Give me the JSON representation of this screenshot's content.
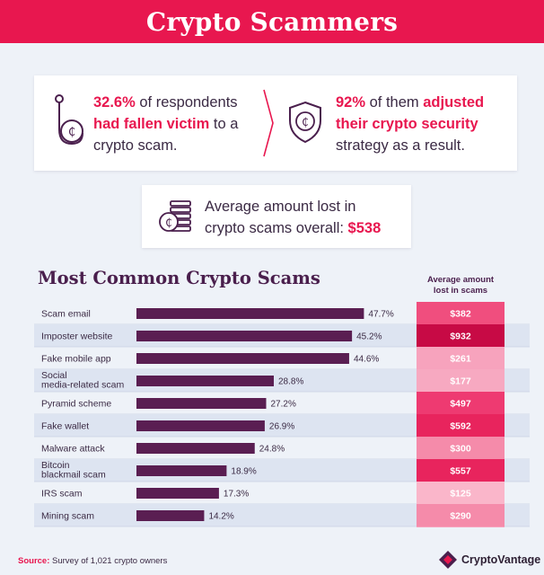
{
  "header": {
    "title": "Crypto Scammers"
  },
  "stats": {
    "left": {
      "pct": "32.6%",
      "pre": " of respondents",
      "bold": "had fallen victim",
      "post_bold": " to a",
      "line3": "crypto scam."
    },
    "right": {
      "pct": "92%",
      "pre": " of them ",
      "bold1": "adjusted",
      "bold2": "their crypto security",
      "line3": "strategy as a result."
    }
  },
  "average": {
    "line1": "Average amount lost in",
    "line2": "crypto scams overall: ",
    "value": "$538"
  },
  "chart_data": {
    "type": "bar",
    "title": "Most Common Crypto Scams",
    "column_header": [
      "Average amount",
      "lost in scams"
    ],
    "categories": [
      "Scam email",
      "Imposter website",
      "Fake mobile app",
      "Social media-related scam",
      "Pyramid scheme",
      "Fake wallet",
      "Malware attack",
      "Bitcoin blackmail scam",
      "IRS scam",
      "Mining scam"
    ],
    "category_lines": [
      [
        "Scam email"
      ],
      [
        "Imposter website"
      ],
      [
        "Fake mobile app"
      ],
      [
        "Social",
        "media-related scam"
      ],
      [
        "Pyramid scheme"
      ],
      [
        "Fake wallet"
      ],
      [
        "Malware attack"
      ],
      [
        "Bitcoin",
        "blackmail scam"
      ],
      [
        "IRS scam"
      ],
      [
        "Mining scam"
      ]
    ],
    "values": [
      47.7,
      45.2,
      44.6,
      28.8,
      27.2,
      26.9,
      24.8,
      18.9,
      17.3,
      14.2
    ],
    "value_labels": [
      "47.7%",
      "45.2%",
      "44.6%",
      "28.8%",
      "27.2%",
      "26.9%",
      "24.8%",
      "18.9%",
      "17.3%",
      "14.2%"
    ],
    "avg_loss": [
      382,
      932,
      261,
      177,
      497,
      592,
      300,
      557,
      125,
      290
    ],
    "avg_loss_labels": [
      "$382",
      "$932",
      "$261",
      "$177",
      "$497",
      "$592",
      "$300",
      "$557",
      "$125",
      "$290"
    ],
    "bar_color": "#5a1e52",
    "cell_colors": [
      "#f04e7e",
      "#c70a45",
      "#f7a3bd",
      "#f7a9c1",
      "#ee3a71",
      "#e8245d",
      "#f58baa",
      "#e8245d",
      "#fab6ca",
      "#f58baa"
    ]
  },
  "footer": {
    "source_label": "Source:",
    "source_text": " Survey of 1,021 crypto owners",
    "brand": "CryptoVantage"
  },
  "colors": {
    "accent": "#e8174f",
    "dark": "#4a1f4d",
    "background": "#eef2f8"
  }
}
